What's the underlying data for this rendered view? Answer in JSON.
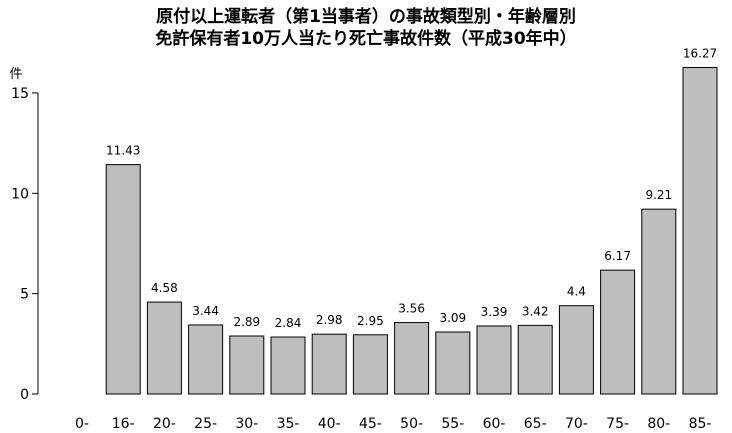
{
  "chart_data": {
    "type": "bar",
    "title_line1": "原付以上運転者（第1当事者）の事故類型別・年齢層別",
    "title_line2": "免許保有者10万人当たり死亡事故件数（平成30年中）",
    "ylabel": "件",
    "xlabel": "",
    "ylim": [
      0,
      15
    ],
    "yticks": [
      0,
      5,
      10,
      15
    ],
    "categories": [
      "0-",
      "16-",
      "20-",
      "25-",
      "30-",
      "35-",
      "40-",
      "45-",
      "50-",
      "55-",
      "60-",
      "65-",
      "70-",
      "75-",
      "80-",
      "85-"
    ],
    "values": [
      null,
      11.43,
      4.58,
      3.44,
      2.89,
      2.84,
      2.98,
      2.95,
      3.56,
      3.09,
      3.39,
      3.42,
      4.4,
      6.17,
      9.21,
      16.27
    ],
    "value_labels": [
      "",
      "11.43",
      "4.58",
      "3.44",
      "2.89",
      "2.84",
      "2.98",
      "2.95",
      "3.56",
      "3.09",
      "3.39",
      "3.42",
      "4.4",
      "6.17",
      "9.21",
      "16.27"
    ],
    "bar_color": "#bebebe",
    "bar_stroke": "#000000",
    "grid": false,
    "legend": "none"
  }
}
